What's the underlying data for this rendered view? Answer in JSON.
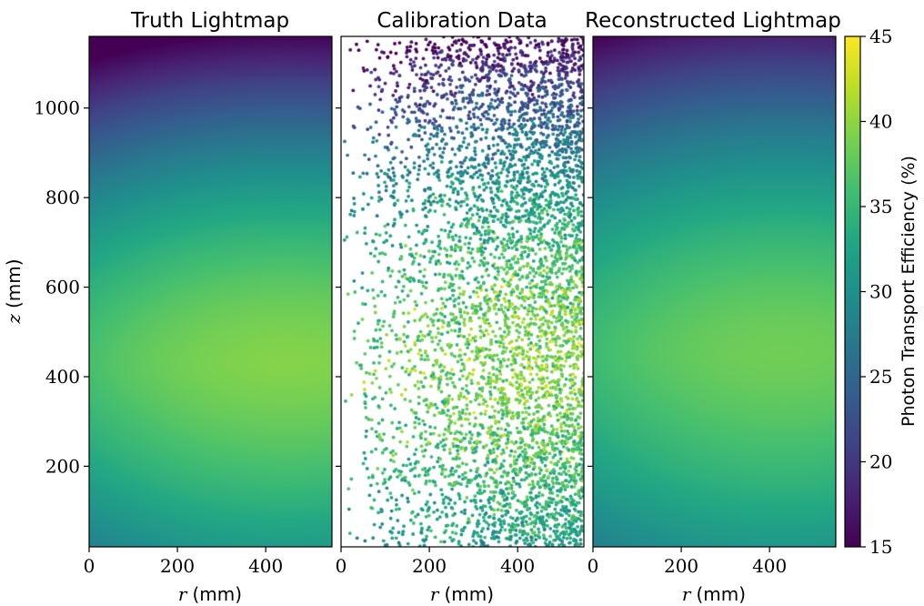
{
  "chart_data": [
    {
      "type": "heatmap",
      "title": "Truth Lightmap",
      "xlabel_var": "r",
      "xlabel_unit": "(mm)",
      "ylabel_var": "z",
      "ylabel_unit": "(mm)",
      "xlim": [
        0,
        550
      ],
      "ylim": [
        20,
        1160
      ],
      "xticks": [
        0,
        200,
        400
      ],
      "yticks": [
        200,
        400,
        600,
        800,
        1000
      ],
      "value_model": {
        "peak_r": 450,
        "peak_z": 430,
        "peak_value": 39.5,
        "top_value": 15.5,
        "bottom_value": 31.5
      }
    },
    {
      "type": "scatter",
      "title": "Calibration Data",
      "xlabel_var": "r",
      "xlabel_unit": "(mm)",
      "xlim": [
        0,
        550
      ],
      "ylim": [
        20,
        1160
      ],
      "xticks": [
        0,
        200,
        400
      ],
      "n_points": 5200,
      "point_density": "increasing with r",
      "value_range": [
        15,
        45
      ]
    },
    {
      "type": "heatmap",
      "title": "Reconstructed Lightmap",
      "xlabel_var": "r",
      "xlabel_unit": "(mm)",
      "xlim": [
        0,
        550
      ],
      "ylim": [
        20,
        1160
      ],
      "xticks": [
        0,
        200,
        400
      ],
      "value_model": {
        "peak_r": 430,
        "peak_z": 450,
        "peak_value": 38.5,
        "top_value": 18.0,
        "bottom_value": 31.0
      }
    }
  ],
  "colorbar": {
    "label": "Photon Transport Efficiency (%)",
    "vmin": 15,
    "vmax": 45,
    "ticks": [
      15,
      20,
      25,
      30,
      35,
      40,
      45
    ],
    "colormap": "viridis"
  }
}
